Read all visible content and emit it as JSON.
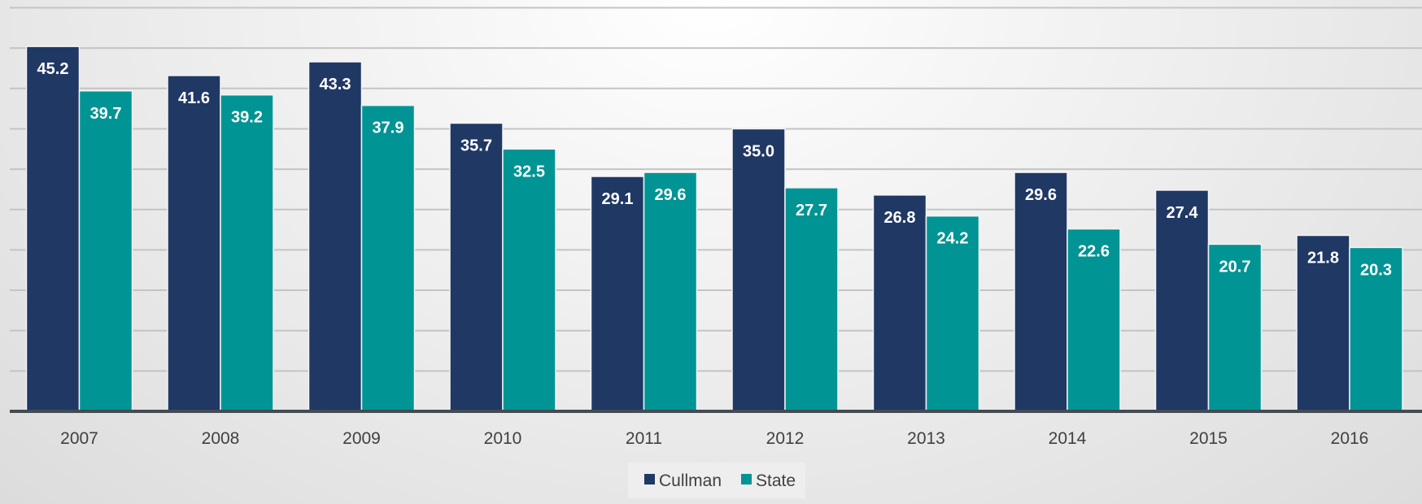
{
  "chart_data": {
    "type": "bar",
    "title": "",
    "xlabel": "",
    "ylabel": "",
    "categories": [
      "2007",
      "2008",
      "2009",
      "2010",
      "2011",
      "2012",
      "2013",
      "2014",
      "2015",
      "2016"
    ],
    "series": [
      {
        "name": "Cullman",
        "color": "#203864",
        "values": [
          45.2,
          41.6,
          43.3,
          35.7,
          29.1,
          35.0,
          26.8,
          29.6,
          27.4,
          21.8
        ]
      },
      {
        "name": "State",
        "color": "#009494",
        "values": [
          39.7,
          39.2,
          37.9,
          32.5,
          29.6,
          27.7,
          24.2,
          22.6,
          20.7,
          20.3
        ]
      }
    ],
    "ylim": [
      0,
      50
    ],
    "grid": true,
    "legend": "bottom-center",
    "data_labels": true
  }
}
